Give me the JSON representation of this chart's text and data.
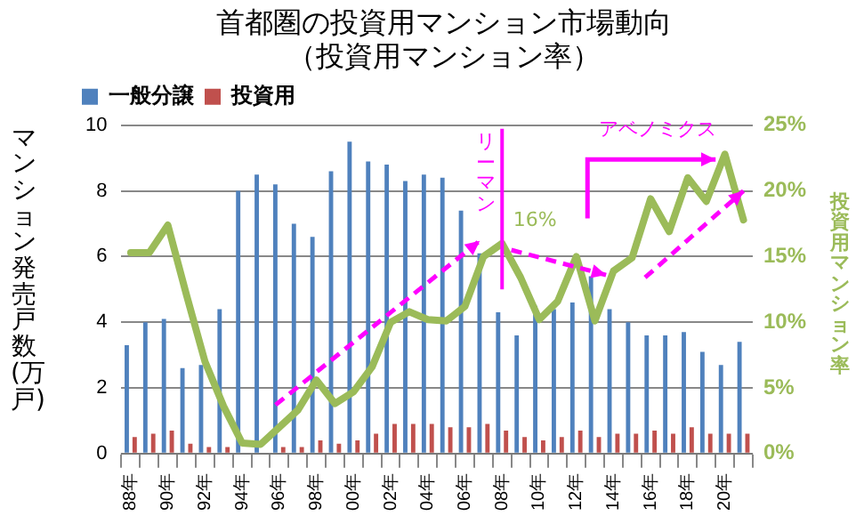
{
  "chart_data": {
    "type": "bar",
    "title": "首都圏の投資用マンション市場動向",
    "subtitle": "（投資用マンション率）",
    "ylabel": "マンション発売戸数(万戸)",
    "y2label": "投資用マンション率",
    "categories": [
      "88年",
      null,
      "90年",
      null,
      "92年",
      null,
      "94年",
      null,
      "96年",
      null,
      "98年",
      null,
      "00年",
      null,
      "02年",
      null,
      "04年",
      null,
      "06年",
      null,
      "08年",
      null,
      "10年",
      null,
      "12年",
      null,
      "14年",
      null,
      "16年",
      null,
      "18年",
      null,
      "20年",
      null
    ],
    "series": [
      {
        "name": "一般分譲",
        "color": "#4f81bd",
        "values": [
          3.3,
          4.0,
          4.1,
          2.6,
          2.7,
          4.4,
          8.0,
          8.5,
          8.2,
          7.0,
          6.6,
          8.6,
          9.5,
          8.9,
          8.8,
          8.3,
          8.5,
          8.4,
          7.4,
          6.1,
          4.3,
          3.6,
          4.5,
          4.4,
          4.6,
          5.4,
          4.4,
          4.0,
          3.6,
          3.6,
          3.7,
          3.1,
          2.7,
          3.4
        ]
      },
      {
        "name": "投資用",
        "color": "#c0504d",
        "values": [
          0.5,
          0.6,
          0.7,
          0.3,
          0.2,
          0.2,
          0.0,
          0.0,
          0.2,
          0.2,
          0.4,
          0.3,
          0.4,
          0.6,
          0.9,
          0.9,
          0.9,
          0.8,
          0.8,
          0.9,
          0.7,
          0.5,
          0.4,
          0.5,
          0.7,
          0.5,
          0.6,
          0.6,
          0.7,
          0.6,
          0.8,
          0.6,
          0.6,
          0.6
        ]
      },
      {
        "type": "line",
        "axis": "y2",
        "color": "#9bbb59",
        "values": [
          15.3,
          15.3,
          17.4,
          12.1,
          7.0,
          3.6,
          0.8,
          0.7,
          2.0,
          3.3,
          5.6,
          3.8,
          4.7,
          6.6,
          10.0,
          10.8,
          10.2,
          10.1,
          11.2,
          15.0,
          16,
          13.4,
          10.2,
          11.6,
          15.0,
          10.1,
          13.9,
          14.9,
          19.4,
          16.9,
          21.0,
          19.2,
          22.8,
          17.8
        ]
      }
    ],
    "ylim": [
      0,
      10
    ],
    "yticks": [
      0,
      2,
      4,
      6,
      8,
      10
    ],
    "y2lim": [
      0,
      25
    ],
    "y2ticks": [
      {
        "value": 0,
        "label": "0%"
      },
      {
        "value": 5,
        "label": "5%"
      },
      {
        "value": 10,
        "label": "10%"
      },
      {
        "value": 15,
        "label": "15%"
      },
      {
        "value": 20,
        "label": "20%"
      },
      {
        "value": 25,
        "label": "25%"
      }
    ],
    "ref_lines": [
      {
        "axis": "x",
        "value": "08年",
        "label": "リーマン",
        "color": "#ff00ff"
      }
    ],
    "annotations": [
      "アベノミクス",
      {
        "text": "16%",
        "x": "08年"
      }
    ],
    "grid": "y",
    "legend": "top left",
    "marker": "none"
  }
}
